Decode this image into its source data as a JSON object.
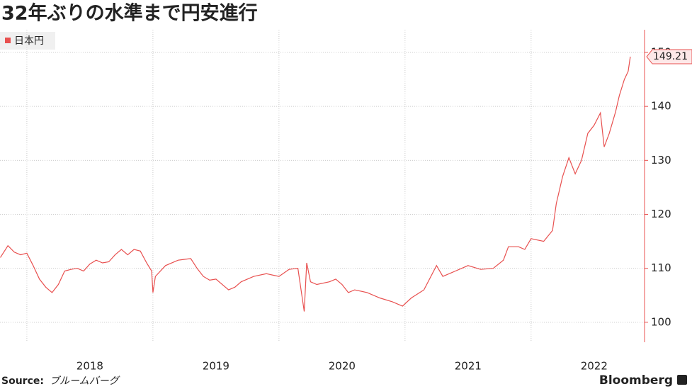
{
  "chart_data": {
    "type": "line",
    "title": "32年ぶりの水準まで円安進行",
    "x": [
      2017.79,
      2017.85,
      2017.9,
      2017.95,
      2018.0,
      2018.05,
      2018.1,
      2018.15,
      2018.2,
      2018.25,
      2018.3,
      2018.35,
      2018.4,
      2018.45,
      2018.5,
      2018.55,
      2018.6,
      2018.65,
      2018.7,
      2018.75,
      2018.8,
      2018.85,
      2018.9,
      2018.95,
      2018.99,
      2019.0,
      2019.02,
      2019.1,
      2019.2,
      2019.3,
      2019.35,
      2019.4,
      2019.45,
      2019.5,
      2019.6,
      2019.65,
      2019.7,
      2019.8,
      2019.9,
      2020.0,
      2020.08,
      2020.15,
      2020.2,
      2020.22,
      2020.25,
      2020.3,
      2020.4,
      2020.45,
      2020.5,
      2020.55,
      2020.6,
      2020.7,
      2020.8,
      2020.9,
      2020.98,
      2021.05,
      2021.15,
      2021.25,
      2021.3,
      2021.4,
      2021.5,
      2021.6,
      2021.7,
      2021.78,
      2021.82,
      2021.9,
      2021.95,
      2022.0,
      2022.1,
      2022.17,
      2022.2,
      2022.25,
      2022.3,
      2022.35,
      2022.4,
      2022.45,
      2022.5,
      2022.55,
      2022.58,
      2022.62,
      2022.67,
      2022.7,
      2022.74,
      2022.77,
      2022.787
    ],
    "series": [
      {
        "name": "日本円",
        "color": "#e8504f",
        "values": [
          112,
          114.2,
          113,
          112.5,
          112.8,
          110.5,
          108,
          106.5,
          105.5,
          107,
          109.5,
          109.8,
          110,
          109.5,
          110.8,
          111.5,
          111,
          111.2,
          112.5,
          113.5,
          112.5,
          113.5,
          113.2,
          111,
          109.5,
          105.5,
          108.5,
          110.5,
          111.5,
          111.8,
          110,
          108.5,
          107.8,
          108,
          106,
          106.5,
          107.5,
          108.5,
          109,
          108.5,
          109.8,
          110,
          102,
          111,
          107.5,
          107,
          107.5,
          108,
          107,
          105.5,
          106,
          105.5,
          104.5,
          103.8,
          103,
          104.5,
          106,
          110.5,
          108.5,
          109.5,
          110.5,
          109.8,
          110,
          111.5,
          114,
          114,
          113.5,
          115.5,
          115,
          117,
          122,
          127,
          130.5,
          127.5,
          130,
          135,
          136.5,
          138.8,
          132.5,
          135,
          139,
          142,
          145,
          146.5,
          149.21
        ]
      }
    ],
    "xlim": [
      2017.787,
      2022.9
    ],
    "xticks": [
      {
        "value": 2018.5,
        "label": "2018"
      },
      {
        "value": 2019.5,
        "label": "2019"
      },
      {
        "value": 2020.5,
        "label": "2020"
      },
      {
        "value": 2021.5,
        "label": "2021"
      },
      {
        "value": 2022.5,
        "label": "2022"
      }
    ],
    "xgrid": [
      2018,
      2019,
      2020,
      2021,
      2022
    ],
    "ylim": [
      96.3,
      154.2
    ],
    "yticks": [
      100,
      110,
      120,
      130,
      140,
      150
    ],
    "grid": true,
    "source_label": "Source:",
    "source": "ブルームバーグ",
    "brand": "Bloomberg"
  }
}
